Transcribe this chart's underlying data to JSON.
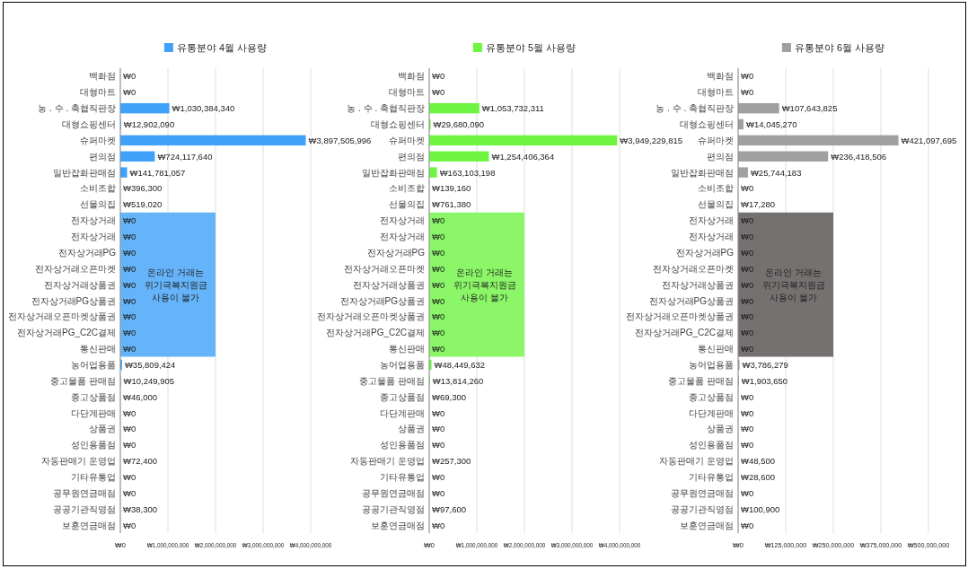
{
  "chart_data": [
    {
      "type": "bar",
      "orientation": "horizontal",
      "categories": [
        "백화점",
        "대형마트",
        "농 . 수 . 축협직판장",
        "대형쇼핑센터",
        "슈퍼마켓",
        "편의점",
        "일반잡화판매점",
        "소비조합",
        "선물의집",
        "전자상거래",
        "전자상거래",
        "전자상거래PG",
        "전자상거래오픈마켓",
        "전자상거래상품권",
        "전자상거래PG상품권",
        "전자상거래오픈마켓상품권",
        "전자상거래PG_C2C결제",
        "통신판매",
        "농어업용품",
        "중고물품 판매점",
        "종고상품점",
        "다단계판매",
        "상품권",
        "성인용품점",
        "자동판매기 운영업",
        "기타유통업",
        "공무원연금매점",
        "공공기관직영점",
        "보훈연금매점"
      ],
      "series": [
        {
          "name": "유통분야 4월 사용량",
          "color": "#3fa1f8",
          "values": [
            0,
            0,
            1030384340,
            12902090,
            3897505996,
            724117640,
            141781057,
            396300,
            519020,
            0,
            0,
            0,
            0,
            0,
            0,
            0,
            0,
            0,
            35809424,
            10249905,
            46000,
            0,
            0,
            0,
            72400,
            0,
            0,
            38300,
            0
          ],
          "value_labels": [
            "₩0",
            "₩0",
            "₩1,030,384,340",
            "₩12,902,090",
            "₩3,897,505,996",
            "₩724,117,640",
            "₩141,781,057",
            "₩396,300",
            "₩519,020",
            "₩0",
            "₩0",
            "₩0",
            "₩0",
            "₩0",
            "₩0",
            "₩0",
            "₩0",
            "₩0",
            "₩35,809,424",
            "₩10,249,905",
            "₩46,000",
            "₩0",
            "₩0",
            "₩0",
            "₩72,400",
            "₩0",
            "₩0",
            "₩38,300",
            "₩0"
          ]
        }
      ],
      "xlim": [
        0,
        4000000000
      ],
      "xticks": [
        {
          "value": 0,
          "label": "₩0"
        },
        {
          "value": 1000000000,
          "label": "₩1,000,000,000"
        },
        {
          "value": 2000000000,
          "label": "₩2,000,000,000"
        },
        {
          "value": 3000000000,
          "label": "₩3,000,000,000"
        },
        {
          "value": 4000000000,
          "label": "₩4,000,000,000"
        }
      ],
      "grid": "x",
      "legend": "top",
      "bands": [
        {
          "axis": "y",
          "from": "전자상거래",
          "to": "통신판매",
          "label": "온라인 거래는\n위기극복지원금\n사용이 불가",
          "color": "#65b4f9"
        }
      ]
    },
    {
      "type": "bar",
      "orientation": "horizontal",
      "categories": [
        "백화점",
        "대형마트",
        "농 . 수 . 축협직판장",
        "대형쇼핑센터",
        "슈퍼마켓",
        "편의점",
        "일반잡화판매점",
        "소비조합",
        "선물의집",
        "전자상거래",
        "전자상거래",
        "전자상거래PG",
        "전자상거래오픈마켓",
        "전자상거래상품권",
        "전자상거래PG상품권",
        "전자상거래오픈마켓상품권",
        "전자상거래PG_C2C결제",
        "통신판매",
        "농어업용품",
        "중고물품 판매점",
        "종고상품점",
        "다단계판매",
        "상품권",
        "성인용품점",
        "자동판매기 운영업",
        "기타유통업",
        "공무원연금매점",
        "공공기관직영점",
        "보훈연금매점"
      ],
      "series": [
        {
          "name": "유통분야 5월 사용량",
          "color": "#6ef542",
          "values": [
            0,
            0,
            1053732311,
            29680090,
            3949229815,
            1254406364,
            163103198,
            139160,
            761380,
            0,
            0,
            0,
            0,
            0,
            0,
            0,
            0,
            0,
            48449632,
            13814260,
            69300,
            0,
            0,
            0,
            257300,
            0,
            0,
            97600,
            0
          ],
          "value_labels": [
            "₩0",
            "₩0",
            "₩1,053,732,311",
            "₩29,680,090",
            "₩3,949,229,815",
            "₩1,254,406,364",
            "₩163,103,198",
            "₩139,160",
            "₩761,380",
            "₩0",
            "₩0",
            "₩0",
            "₩0",
            "₩0",
            "₩0",
            "₩0",
            "₩0",
            "₩0",
            "₩48,449,632",
            "₩13,814,260",
            "₩69,300",
            "₩0",
            "₩0",
            "₩0",
            "₩257,300",
            "₩0",
            "₩0",
            "₩97,600",
            "₩0"
          ]
        }
      ],
      "xlim": [
        0,
        4000000000
      ],
      "xticks": [
        {
          "value": 0,
          "label": "₩0"
        },
        {
          "value": 1000000000,
          "label": "₩1,000,000,000"
        },
        {
          "value": 2000000000,
          "label": "₩2,000,000,000"
        },
        {
          "value": 3000000000,
          "label": "₩3,000,000,000"
        },
        {
          "value": 4000000000,
          "label": "₩4,000,000,000"
        }
      ],
      "grid": "x",
      "legend": "top",
      "bands": [
        {
          "axis": "y",
          "from": "전자상거래",
          "to": "통신판매",
          "label": "온라인 거래는\n위기극복지원금\n사용이 불가",
          "color": "#8bf768"
        }
      ]
    },
    {
      "type": "bar",
      "orientation": "horizontal",
      "categories": [
        "백화점",
        "대형마트",
        "농 . 수 . 축협직판장",
        "대형쇼핑센터",
        "슈퍼마켓",
        "편의점",
        "일반잡화판매점",
        "소비조합",
        "선물의집",
        "전자상거래",
        "전자상거래",
        "전자상거래PG",
        "전자상거래오픈마켓",
        "전자상거래상품권",
        "전자상거래PG상품권",
        "전자상거래오픈마켓상품권",
        "전자상거래PG_C2C결제",
        "통신판매",
        "농어업용품",
        "중고물품 판매점",
        "종고상품점",
        "다단계판매",
        "상품권",
        "성인용품점",
        "자동판매기 운영업",
        "기타유통업",
        "공무원연금매점",
        "공공기관직영점",
        "보훈연금매점"
      ],
      "series": [
        {
          "name": "유통분야 6월 사용량",
          "color": "#a0a0a0",
          "values": [
            0,
            0,
            107643825,
            14045270,
            421097695,
            236418506,
            25744183,
            0,
            17280,
            0,
            0,
            0,
            0,
            0,
            0,
            0,
            0,
            0,
            3786279,
            1903650,
            0,
            0,
            0,
            0,
            48500,
            28600,
            0,
            100900,
            0
          ],
          "value_labels": [
            "₩0",
            "₩0",
            "₩107,643,825",
            "₩14,045,270",
            "₩421,097,695",
            "₩236,418,506",
            "₩25,744,183",
            "₩0",
            "₩17,280",
            "₩0",
            "₩0",
            "₩0",
            "₩0",
            "₩0",
            "₩0",
            "₩0",
            "₩0",
            "₩0",
            "₩3,786,279",
            "₩1,903,650",
            "₩0",
            "₩0",
            "₩0",
            "₩0",
            "₩48,500",
            "₩28,600",
            "₩0",
            "₩100,900",
            "₩0"
          ]
        }
      ],
      "xlim": [
        0,
        500000000
      ],
      "xticks": [
        {
          "value": 0,
          "label": "₩0"
        },
        {
          "value": 125000000,
          "label": "₩125,000,000"
        },
        {
          "value": 250000000,
          "label": "₩250,000,000"
        },
        {
          "value": 375000000,
          "label": "₩375,000,000"
        },
        {
          "value": 500000000,
          "label": "₩500,000,000"
        }
      ],
      "grid": "x",
      "legend": "top",
      "bands": [
        {
          "axis": "y",
          "from": "전자상거래",
          "to": "통신판매",
          "label": "온라인 거래는\n위기극복지원금\n사용이 불가",
          "color": "#767171"
        }
      ]
    }
  ]
}
